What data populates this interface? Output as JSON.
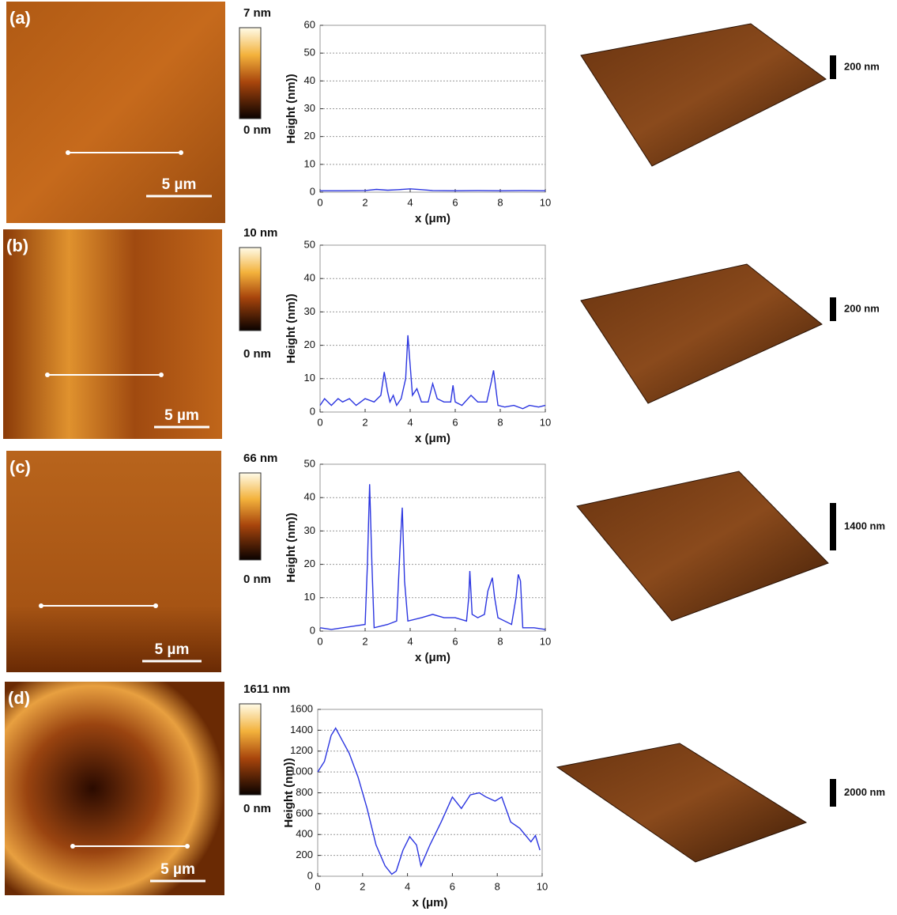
{
  "chart_data": [
    {
      "type": "line",
      "xlabel": "x (μm)",
      "ylabel": "Height (nm))",
      "color": "#2b35e0",
      "x": [
        0,
        1,
        2,
        2.5,
        3,
        3.5,
        4,
        4.5,
        5,
        6,
        7,
        8,
        9,
        10
      ],
      "values": [
        0.5,
        0.5,
        0.6,
        1,
        0.7,
        0.9,
        1.2,
        0.9,
        0.6,
        0.5,
        0.6,
        0.5,
        0.6,
        0.5
      ],
      "xlim": [
        0,
        10
      ],
      "xticks": [
        0,
        2,
        4,
        6,
        8,
        10
      ],
      "ylim": [
        0,
        60
      ],
      "yticks": [
        0,
        10,
        20,
        30,
        40,
        50,
        60
      ],
      "grid": true
    },
    {
      "type": "line",
      "xlabel": "x (μm)",
      "ylabel": "Height (nm))",
      "color": "#2b35e0",
      "x": [
        0,
        0.2,
        0.5,
        0.8,
        1,
        1.3,
        1.6,
        2,
        2.4,
        2.7,
        2.85,
        3,
        3.1,
        3.25,
        3.4,
        3.6,
        3.8,
        3.9,
        4,
        4.1,
        4.3,
        4.5,
        4.8,
        5,
        5.2,
        5.5,
        5.8,
        5.9,
        6,
        6.3,
        6.7,
        7,
        7.4,
        7.6,
        7.7,
        7.9,
        8.2,
        8.6,
        9,
        9.3,
        9.7,
        10
      ],
      "values": [
        2,
        4,
        2,
        4,
        3,
        4,
        2,
        4,
        3,
        5,
        12,
        6,
        3,
        5,
        2,
        4,
        10,
        23,
        14,
        5,
        7,
        3,
        3,
        8.5,
        4,
        3,
        3,
        8,
        3,
        2,
        5,
        3,
        3,
        9,
        12.5,
        2,
        1.5,
        2,
        1,
        2,
        1.5,
        2
      ],
      "xlim": [
        0,
        10
      ],
      "xticks": [
        0,
        2,
        4,
        6,
        8,
        10
      ],
      "ylim": [
        0,
        50
      ],
      "yticks": [
        0,
        10,
        20,
        30,
        40,
        50
      ],
      "grid": true
    },
    {
      "type": "line",
      "xlabel": "x (μm)",
      "ylabel": "Height (nm))",
      "color": "#2b35e0",
      "x": [
        0,
        0.5,
        1,
        1.5,
        2,
        2.1,
        2.2,
        2.3,
        2.4,
        3,
        3.4,
        3.55,
        3.65,
        3.75,
        3.9,
        4.5,
        5,
        5.5,
        6,
        6.5,
        6.6,
        6.65,
        6.75,
        7,
        7.3,
        7.45,
        7.55,
        7.65,
        7.75,
        7.9,
        8.5,
        8.7,
        8.8,
        8.9,
        9,
        9.5,
        10
      ],
      "values": [
        1,
        0.5,
        1,
        1.5,
        2,
        20,
        44,
        20,
        1,
        2,
        3,
        25,
        37,
        15,
        3,
        4,
        5,
        4,
        4,
        3,
        10,
        18,
        5,
        4,
        5,
        12,
        14,
        16,
        10,
        4,
        2,
        10,
        17,
        15,
        1,
        1,
        0.5
      ],
      "xlim": [
        0,
        10
      ],
      "xticks": [
        0,
        2,
        4,
        6,
        8,
        10
      ],
      "ylim": [
        0,
        50
      ],
      "yticks": [
        0,
        10,
        20,
        30,
        40,
        50
      ],
      "grid": true
    },
    {
      "type": "line",
      "xlabel": "x (μm)",
      "ylabel": "Height (nm))",
      "color": "#2b35e0",
      "x": [
        0,
        0.3,
        0.6,
        0.8,
        1.1,
        1.4,
        1.8,
        2.2,
        2.6,
        3,
        3.3,
        3.5,
        3.8,
        4.1,
        4.4,
        4.6,
        5,
        5.5,
        6,
        6.4,
        6.8,
        7.2,
        7.5,
        7.9,
        8.2,
        8.6,
        9,
        9.5,
        9.7,
        9.9
      ],
      "values": [
        1000,
        1100,
        1350,
        1420,
        1300,
        1180,
        950,
        650,
        300,
        100,
        20,
        50,
        250,
        380,
        300,
        100,
        300,
        520,
        760,
        650,
        780,
        800,
        760,
        720,
        760,
        520,
        460,
        330,
        390,
        250
      ],
      "xlim": [
        0,
        10
      ],
      "xticks": [
        0,
        2,
        4,
        6,
        8,
        10
      ],
      "ylim": [
        0,
        1600
      ],
      "yticks": [
        0,
        200,
        400,
        600,
        800,
        1000,
        1200,
        1400,
        1600
      ],
      "grid": true
    }
  ],
  "panels": [
    {
      "label": "(a)",
      "colorbar_max": "7 nm",
      "colorbar_min": "0 nm",
      "scale_bar": "5 µm",
      "height_bar": "200 nm"
    },
    {
      "label": "(b)",
      "colorbar_max": "10 nm",
      "colorbar_min": "0 nm",
      "scale_bar": "5 µm",
      "height_bar": "200 nm"
    },
    {
      "label": "(c)",
      "colorbar_max": "66 nm",
      "colorbar_min": "0 nm",
      "scale_bar": "5 µm",
      "height_bar": "1400 nm"
    },
    {
      "label": "(d)",
      "colorbar_max": "1611 nm",
      "colorbar_min": "0 nm",
      "scale_bar": "5 µm",
      "height_bar": "2000 nm"
    }
  ]
}
